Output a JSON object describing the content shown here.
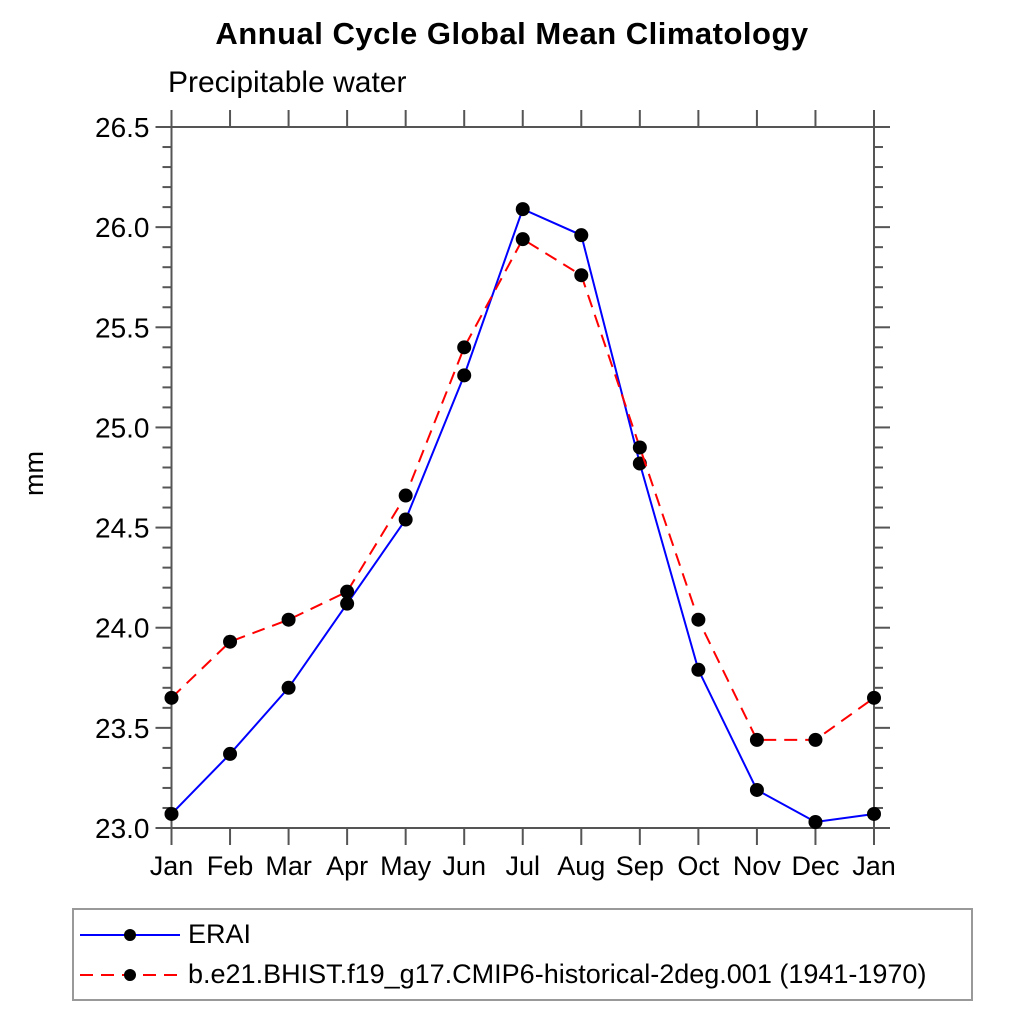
{
  "chart_data": {
    "type": "line",
    "title": "Annual Cycle Global Mean Climatology",
    "subtitle": "Precipitable water",
    "ylabel": "mm",
    "xlabel": "",
    "categories": [
      "Jan",
      "Feb",
      "Mar",
      "Apr",
      "May",
      "Jun",
      "Jul",
      "Aug",
      "Sep",
      "Oct",
      "Nov",
      "Dec",
      "Jan"
    ],
    "ylim": [
      23.0,
      26.5
    ],
    "ytick_step": 0.5,
    "minor_tick_step": 0.1,
    "ytick_labels": [
      "23.0",
      "23.5",
      "24.0",
      "24.5",
      "25.0",
      "25.5",
      "26.0",
      "26.5"
    ],
    "grid": false,
    "legend_position": "bottom",
    "axis_color": "#555555",
    "series": [
      {
        "name": "ERAI",
        "color": "#0000ff",
        "style": "solid",
        "dasharray": "",
        "marker": "circle",
        "marker_color": "#000000",
        "values": [
          23.07,
          23.37,
          23.7,
          24.12,
          24.54,
          25.26,
          26.09,
          25.96,
          24.82,
          23.79,
          23.19,
          23.03,
          23.07
        ]
      },
      {
        "name": "b.e21.BHIST.f19_g17.CMIP6-historical-2deg.001 (1941-1970)",
        "color": "#ff0000",
        "style": "dashed",
        "dasharray": "13,8",
        "marker": "circle",
        "marker_color": "#000000",
        "values": [
          23.65,
          23.93,
          24.04,
          24.18,
          24.66,
          25.4,
          25.94,
          25.76,
          24.9,
          24.04,
          23.44,
          23.44,
          23.65
        ]
      }
    ]
  }
}
